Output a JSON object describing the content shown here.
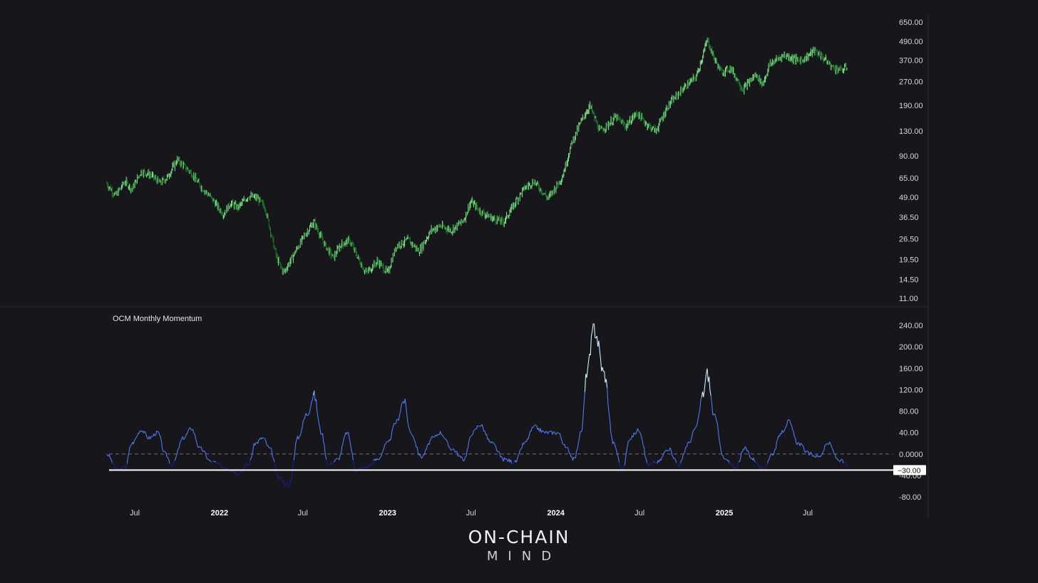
{
  "chart_data": [
    {
      "type": "candlestick",
      "title": "",
      "y_scale": "log",
      "ylim": [
        11,
        650
      ],
      "yticks": [
        650,
        490,
        370,
        270,
        190,
        130,
        90,
        65,
        49,
        36.5,
        26.5,
        19.5,
        14.5,
        11
      ],
      "ytick_labels": [
        "650.00",
        "490.00",
        "370.00",
        "270.00",
        "190.00",
        "130.00",
        "90.00",
        "65.00",
        "49.00",
        "36.50",
        "26.50",
        "19.50",
        "14.50",
        "11.00"
      ],
      "grid": false,
      "colors": {
        "up": "#7fe08a",
        "down": "#1f7a2a"
      },
      "series": [
        {
          "x": [
            "2021-05-01",
            "2021-05-20",
            "2021-06-10",
            "2021-06-25",
            "2021-07-15",
            "2021-08-05",
            "2021-08-25",
            "2021-09-10",
            "2021-10-01",
            "2021-11-01",
            "2021-11-20",
            "2021-12-10",
            "2022-01-10",
            "2022-01-25",
            "2022-02-10",
            "2022-03-05",
            "2022-03-25",
            "2022-04-10",
            "2022-05-05",
            "2022-05-20",
            "2022-06-15",
            "2022-07-05",
            "2022-07-25",
            "2022-08-15",
            "2022-09-05",
            "2022-09-20",
            "2022-10-10",
            "2022-11-05",
            "2022-11-15",
            "2022-12-10",
            "2023-01-01",
            "2023-01-20",
            "2023-02-15",
            "2023-03-10",
            "2023-04-05",
            "2023-04-25",
            "2023-05-20",
            "2023-06-15",
            "2023-07-01",
            "2023-07-20",
            "2023-08-15",
            "2023-09-10",
            "2023-10-10",
            "2023-10-25",
            "2023-11-15",
            "2023-12-15",
            "2024-01-15",
            "2024-02-05",
            "2024-02-25",
            "2024-03-15",
            "2024-04-05",
            "2024-04-20",
            "2024-05-10",
            "2024-06-01",
            "2024-06-25",
            "2024-07-15",
            "2024-08-05",
            "2024-09-01",
            "2024-10-01",
            "2024-11-01",
            "2024-11-25",
            "2024-12-10",
            "2024-12-25",
            "2025-01-15",
            "2025-02-10",
            "2025-03-10",
            "2025-03-25",
            "2025-04-10",
            "2025-05-10",
            "2025-06-10",
            "2025-06-25",
            "2025-07-15",
            "2025-08-05",
            "2025-08-25",
            "2025-09-15",
            "2025-09-25"
          ],
          "y": [
            60,
            50,
            62,
            55,
            72,
            68,
            60,
            66,
            85,
            70,
            58,
            50,
            38,
            45,
            42,
            50,
            48,
            42,
            20,
            16,
            22,
            28,
            34,
            25,
            20,
            24,
            26,
            18,
            16,
            19,
            16,
            24,
            26,
            22,
            30,
            32,
            30,
            35,
            46,
            40,
            36,
            34,
            48,
            56,
            62,
            48,
            66,
            110,
            150,
            190,
            130,
            140,
            160,
            140,
            170,
            145,
            130,
            190,
            240,
            290,
            500,
            380,
            310,
            330,
            240,
            300,
            260,
            350,
            400,
            370,
            380,
            430,
            380,
            330,
            320,
            340
          ]
        }
      ]
    },
    {
      "type": "line",
      "title": "OCM Monthly Momentum",
      "ylim": [
        -80,
        240
      ],
      "yticks": [
        240,
        200,
        160,
        120,
        80,
        40,
        0,
        -40,
        -80
      ],
      "ytick_labels": [
        "240.00",
        "200.00",
        "160.00",
        "120.00",
        "80.00",
        "40.00",
        "0.0000",
        "-40.00",
        "-80.00"
      ],
      "reference_lines": [
        {
          "y": 0,
          "style": "dashed"
        },
        {
          "y": -30,
          "style": "solid",
          "label": "−30.00"
        }
      ],
      "colors": {
        "line_low": "#1a1f8f",
        "line_mid": "#4d7cf0",
        "line_high": "#cdeaff"
      },
      "grid": false,
      "series": [
        {
          "x": [
            "2021-05-01",
            "2021-05-25",
            "2021-06-10",
            "2021-06-25",
            "2021-07-15",
            "2021-08-01",
            "2021-08-20",
            "2021-09-05",
            "2021-09-20",
            "2021-10-15",
            "2021-11-01",
            "2021-11-20",
            "2021-12-15",
            "2022-01-15",
            "2022-02-10",
            "2022-03-05",
            "2022-03-20",
            "2022-04-05",
            "2022-04-20",
            "2022-05-10",
            "2022-06-01",
            "2022-06-20",
            "2022-07-10",
            "2022-07-25",
            "2022-08-10",
            "2022-08-25",
            "2022-09-15",
            "2022-10-05",
            "2022-10-25",
            "2022-11-15",
            "2022-12-10",
            "2023-01-01",
            "2023-01-20",
            "2023-02-05",
            "2023-02-20",
            "2023-03-15",
            "2023-04-10",
            "2023-04-25",
            "2023-05-20",
            "2023-06-15",
            "2023-07-05",
            "2023-07-20",
            "2023-08-15",
            "2023-09-10",
            "2023-10-05",
            "2023-10-25",
            "2023-11-15",
            "2023-12-10",
            "2024-01-05",
            "2024-01-25",
            "2024-02-10",
            "2024-02-25",
            "2024-03-10",
            "2024-03-25",
            "2024-04-15",
            "2024-05-05",
            "2024-05-25",
            "2024-06-10",
            "2024-06-30",
            "2024-07-20",
            "2024-08-10",
            "2024-09-01",
            "2024-09-25",
            "2024-10-15",
            "2024-11-01",
            "2024-11-15",
            "2024-11-25",
            "2024-12-10",
            "2025-01-01",
            "2025-01-25",
            "2025-02-15",
            "2025-03-05",
            "2025-03-25",
            "2025-04-15",
            "2025-05-05",
            "2025-05-20",
            "2025-06-10",
            "2025-07-05",
            "2025-07-25",
            "2025-08-15",
            "2025-09-05",
            "2025-09-25"
          ],
          "y": [
            0,
            -30,
            -25,
            20,
            45,
            30,
            40,
            0,
            -20,
            30,
            48,
            10,
            -15,
            -25,
            -35,
            -20,
            20,
            30,
            10,
            -45,
            -60,
            30,
            75,
            110,
            40,
            -20,
            -10,
            40,
            -30,
            -25,
            -10,
            20,
            60,
            100,
            40,
            -5,
            30,
            40,
            10,
            -10,
            40,
            55,
            20,
            -10,
            -15,
            20,
            50,
            40,
            40,
            10,
            -10,
            40,
            160,
            235,
            150,
            20,
            -30,
            30,
            45,
            -20,
            -15,
            10,
            -20,
            20,
            50,
            110,
            150,
            70,
            -10,
            -25,
            10,
            -10,
            -30,
            0,
            40,
            60,
            20,
            0,
            -5,
            20,
            -10,
            -20
          ]
        }
      ]
    }
  ],
  "x_axis": {
    "labels": [
      {
        "text": "Jul",
        "bold": false,
        "date": "2021-07-01"
      },
      {
        "text": "2022",
        "bold": true,
        "date": "2022-01-01"
      },
      {
        "text": "Jul",
        "bold": false,
        "date": "2022-07-01"
      },
      {
        "text": "2023",
        "bold": true,
        "date": "2023-01-01"
      },
      {
        "text": "Jul",
        "bold": false,
        "date": "2023-07-01"
      },
      {
        "text": "2024",
        "bold": true,
        "date": "2024-01-01"
      },
      {
        "text": "Jul",
        "bold": false,
        "date": "2024-07-01"
      },
      {
        "text": "2025",
        "bold": true,
        "date": "2025-01-01"
      },
      {
        "text": "Jul",
        "bold": false,
        "date": "2025-07-01"
      }
    ]
  },
  "logo": {
    "line1": "ON-CHAIN",
    "line2": "MIND"
  },
  "colors": {
    "background": "#16161b",
    "separator": "#2a2a30",
    "dashed_zero": "#6d6d76",
    "ref_line": "#ffffff"
  }
}
